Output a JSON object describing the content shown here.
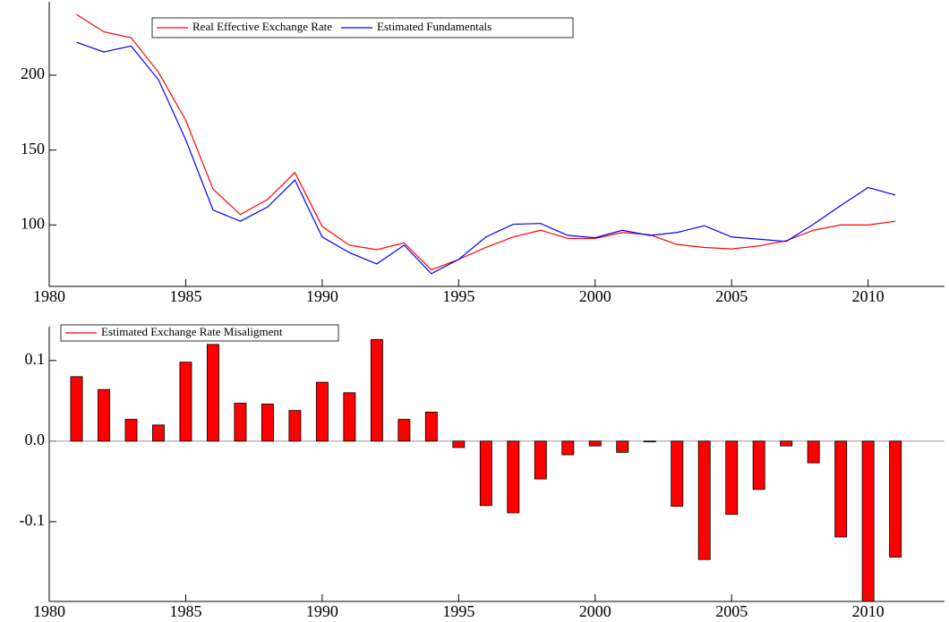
{
  "chart_data": [
    {
      "type": "line",
      "x": [
        1981,
        1982,
        1983,
        1984,
        1985,
        1986,
        1987,
        1988,
        1989,
        1990,
        1991,
        1992,
        1993,
        1994,
        1995,
        1996,
        1997,
        1998,
        1999,
        2000,
        2001,
        2002,
        2003,
        2004,
        2005,
        2006,
        2007,
        2008,
        2009,
        2010,
        2011
      ],
      "series": [
        {
          "name": "Real Effective Exchange Rate",
          "color": "#ff0000",
          "values": [
            240.5,
            229,
            225,
            202,
            170,
            124,
            107,
            117,
            135,
            99,
            86.5,
            83.5,
            88,
            70,
            77,
            85,
            92,
            96.5,
            91,
            91,
            95,
            93.5,
            87,
            85,
            84,
            86,
            89.5,
            96.5,
            100,
            100,
            102.5
          ]
        },
        {
          "name": "Estimated Fundamentals",
          "color": "#0000ff",
          "values": [
            222,
            215.5,
            219.5,
            197,
            157,
            110,
            102.5,
            112,
            130,
            92,
            81.5,
            74,
            86.5,
            67.5,
            77,
            92,
            100.5,
            101,
            93,
            91.5,
            96.5,
            93,
            95,
            99.5,
            92,
            90.5,
            89,
            100.5,
            113,
            125,
            120
          ]
        }
      ],
      "xlim": [
        1980,
        2012.8
      ],
      "xticks": [
        1980,
        1985,
        1990,
        1995,
        2000,
        2005,
        2010
      ],
      "ylim": [
        59,
        249
      ],
      "yticks": [
        100,
        150,
        200
      ]
    },
    {
      "type": "bar",
      "x": [
        1981,
        1982,
        1983,
        1984,
        1985,
        1986,
        1987,
        1988,
        1989,
        1990,
        1991,
        1992,
        1993,
        1994,
        1995,
        1996,
        1997,
        1998,
        1999,
        2000,
        2001,
        2002,
        2003,
        2004,
        2005,
        2006,
        2007,
        2008,
        2009,
        2010,
        2011
      ],
      "series": [
        {
          "name": "Estimated Exchange Rate Misaligment",
          "color": "#ff0000",
          "values": [
            0.08,
            0.064,
            0.027,
            0.02,
            0.098,
            0.12,
            0.047,
            0.046,
            0.038,
            0.073,
            0.06,
            0.126,
            0.027,
            0.036,
            -0.008,
            -0.08,
            -0.089,
            -0.047,
            -0.017,
            -0.006,
            -0.014,
            -0.001,
            -0.081,
            -0.147,
            -0.091,
            -0.06,
            -0.006,
            -0.027,
            -0.119,
            -0.199,
            -0.144
          ]
        }
      ],
      "xlim": [
        1980,
        2012.8
      ],
      "xticks": [
        1980,
        1985,
        1990,
        1995,
        2000,
        2005,
        2010
      ],
      "ylim": [
        -0.199,
        0.142
      ],
      "yticks": [
        -0.1,
        {
          "value": 0,
          "label": "0.0"
        },
        0.1
      ]
    }
  ]
}
